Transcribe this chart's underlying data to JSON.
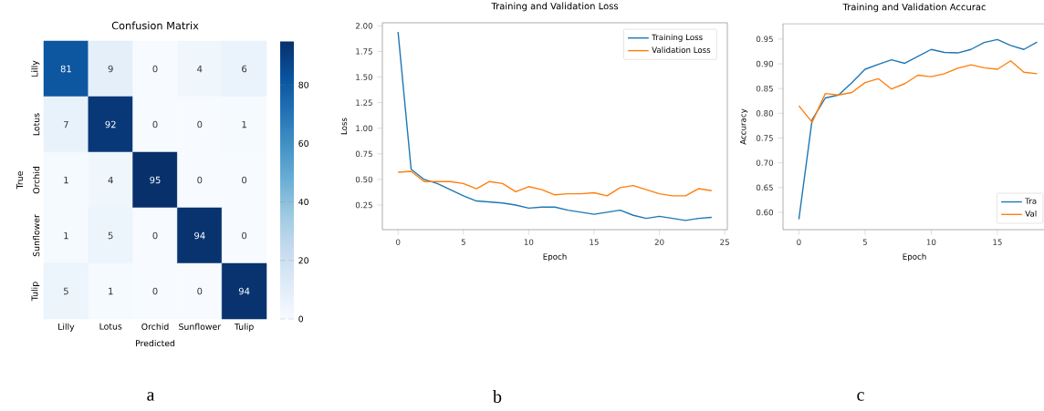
{
  "chart_data": [
    {
      "type": "heatmap",
      "title": "Confusion Matrix",
      "xlabel": "Predicted",
      "ylabel": "True",
      "categories": [
        "Lilly",
        "Lotus",
        "Orchid",
        "Sunflower",
        "Tulip"
      ],
      "y_categories": [
        "Lilly",
        "Lotus",
        "Orchid",
        "Sunflower",
        "Tulip"
      ],
      "cells": [
        [
          81,
          9,
          0,
          4,
          6
        ],
        [
          7,
          92,
          0,
          0,
          1
        ],
        [
          1,
          4,
          95,
          0,
          0
        ],
        [
          1,
          5,
          0,
          94,
          0
        ],
        [
          5,
          1,
          0,
          0,
          94
        ]
      ],
      "data_labels": true,
      "clim": [
        0,
        95
      ],
      "cticks": [
        0,
        20,
        40,
        60,
        80
      ],
      "annotations": [
        "a"
      ]
    },
    {
      "type": "line",
      "title": "Training and Validation Loss",
      "xlabel": "Epoch",
      "ylabel": "Loss",
      "x": [
        0,
        1,
        2,
        3,
        4,
        5,
        6,
        7,
        8,
        9,
        10,
        11,
        12,
        13,
        14,
        15,
        16,
        17,
        18,
        19,
        20,
        21,
        22,
        23,
        24
      ],
      "series": [
        {
          "name": "Training Loss",
          "color": "#1f77b4",
          "values": [
            1.94,
            0.6,
            0.5,
            0.46,
            0.4,
            0.34,
            0.29,
            0.28,
            0.27,
            0.25,
            0.22,
            0.23,
            0.23,
            0.2,
            0.18,
            0.16,
            0.18,
            0.2,
            0.15,
            0.12,
            0.14,
            0.12,
            0.1,
            0.12,
            0.13
          ]
        },
        {
          "name": "Validation Loss",
          "color": "#ff7f0e",
          "values": [
            0.57,
            0.58,
            0.48,
            0.48,
            0.48,
            0.46,
            0.41,
            0.48,
            0.46,
            0.38,
            0.43,
            0.4,
            0.35,
            0.36,
            0.36,
            0.37,
            0.34,
            0.42,
            0.44,
            0.4,
            0.36,
            0.34,
            0.34,
            0.41,
            0.39
          ]
        }
      ],
      "xlim": [
        -1.2,
        25.2
      ],
      "ylim": [
        0.01,
        2.03
      ],
      "xticks": [
        0,
        5,
        10,
        15,
        20,
        25
      ],
      "yticks": [
        {
          "value": 0.25,
          "label": "0.25"
        },
        {
          "value": 0.5,
          "label": "0.50"
        },
        {
          "value": 0.75,
          "label": "0.75"
        },
        {
          "value": 1,
          "label": "1.00"
        },
        {
          "value": 1.25,
          "label": "1.25"
        },
        {
          "value": 1.5,
          "label": "1.50"
        },
        {
          "value": 1.75,
          "label": "1.75"
        },
        {
          "value": 2,
          "label": "2.00"
        }
      ],
      "legend": "top right",
      "annotations": [
        "b"
      ]
    },
    {
      "type": "line",
      "title": "Training and Validation Accurac",
      "xlabel": "Epoch",
      "ylabel": "Accuracy",
      "x": [
        0,
        1,
        2,
        3,
        4,
        5,
        6,
        7,
        8,
        9,
        10,
        11,
        12,
        13,
        14,
        15,
        16,
        17,
        18
      ],
      "series": [
        {
          "name": "Tra",
          "color": "#1f77b4",
          "values": [
            0.586,
            0.787,
            0.831,
            0.837,
            0.862,
            0.889,
            0.899,
            0.908,
            0.901,
            0.915,
            0.929,
            0.923,
            0.922,
            0.929,
            0.943,
            0.949,
            0.937,
            0.929,
            0.944
          ]
        },
        {
          "name": "Val",
          "color": "#ff7f0e",
          "values": [
            0.815,
            0.782,
            0.84,
            0.837,
            0.842,
            0.862,
            0.87,
            0.849,
            0.86,
            0.877,
            0.874,
            0.88,
            0.891,
            0.898,
            0.892,
            0.889,
            0.906,
            0.883,
            0.88
          ]
        }
      ],
      "xlim": [
        -1.2,
        18.66
      ],
      "ylim": [
        0.565,
        0.981
      ],
      "xticks": [
        0,
        5,
        10,
        15
      ],
      "yticks": [
        {
          "value": 0.6,
          "label": "0.60"
        },
        {
          "value": 0.65,
          "label": "0.65"
        },
        {
          "value": 0.7,
          "label": "0.70"
        },
        {
          "value": 0.75,
          "label": "0.75"
        },
        {
          "value": 0.8,
          "label": "0.80"
        },
        {
          "value": 0.85,
          "label": "0.85"
        },
        {
          "value": 0.9,
          "label": "0.90"
        },
        {
          "value": 0.95,
          "label": "0.95"
        }
      ],
      "legend": "bottom right",
      "annotations": [
        "c"
      ]
    }
  ]
}
